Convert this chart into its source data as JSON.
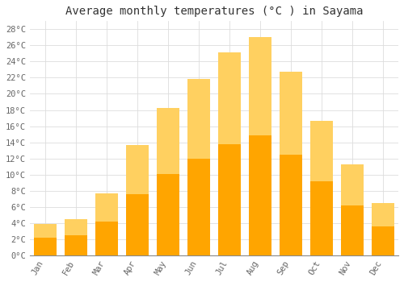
{
  "title": "Average monthly temperatures (°C ) in Sayama",
  "months": [
    "Jan",
    "Feb",
    "Mar",
    "Apr",
    "May",
    "Jun",
    "Jul",
    "Aug",
    "Sep",
    "Oct",
    "Nov",
    "Dec"
  ],
  "temperatures": [
    3.9,
    4.5,
    7.7,
    13.7,
    18.3,
    21.8,
    25.1,
    27.0,
    22.7,
    16.7,
    11.3,
    6.5
  ],
  "bar_color_bottom": "#FFA500",
  "bar_color_top": "#FFD060",
  "ylim": [
    0,
    29
  ],
  "yticks": [
    0,
    2,
    4,
    6,
    8,
    10,
    12,
    14,
    16,
    18,
    20,
    22,
    24,
    26,
    28
  ],
  "grid_color": "#dddddd",
  "background_color": "#ffffff",
  "plot_bg_color": "#ffffff",
  "title_fontsize": 10,
  "tick_fontsize": 7.5,
  "font_family": "monospace",
  "bar_width": 0.75
}
